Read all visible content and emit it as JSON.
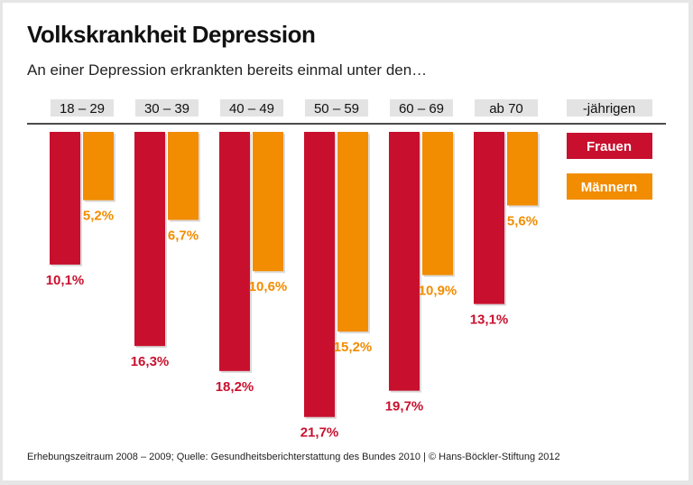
{
  "chart_data": {
    "type": "bar",
    "title": "Volkskrankheit Depression",
    "subtitle": "An einer Depression erkrankten bereits einmal unter den…",
    "categories": [
      "18 – 29",
      "30 – 39",
      "40 – 49",
      "50 – 59",
      "60 – 69",
      "ab 70"
    ],
    "category_suffix": "-jährigen",
    "series": [
      {
        "name": "Frauen",
        "color": "#c8102e",
        "values": [
          10.1,
          16.3,
          18.2,
          21.7,
          19.7,
          13.1
        ],
        "labels": [
          "10,1%",
          "16,3%",
          "18,2%",
          "21,7%",
          "19,7%",
          "13,1%"
        ]
      },
      {
        "name": "Männern",
        "color": "#f28c00",
        "values": [
          5.2,
          6.7,
          10.6,
          15.2,
          10.9,
          5.6
        ],
        "labels": [
          "5,2%",
          "6,7%",
          "10,6%",
          "15,2%",
          "10,9%",
          "5,6%"
        ]
      }
    ],
    "orientation": "downward from top axis",
    "legend": "right"
  },
  "footer": "Erhebungszeitraum 2008 – 2009; Quelle: Gesundheitsberichterstattung des Bundes 2010 | © Hans-Böckler-Stiftung 2012"
}
